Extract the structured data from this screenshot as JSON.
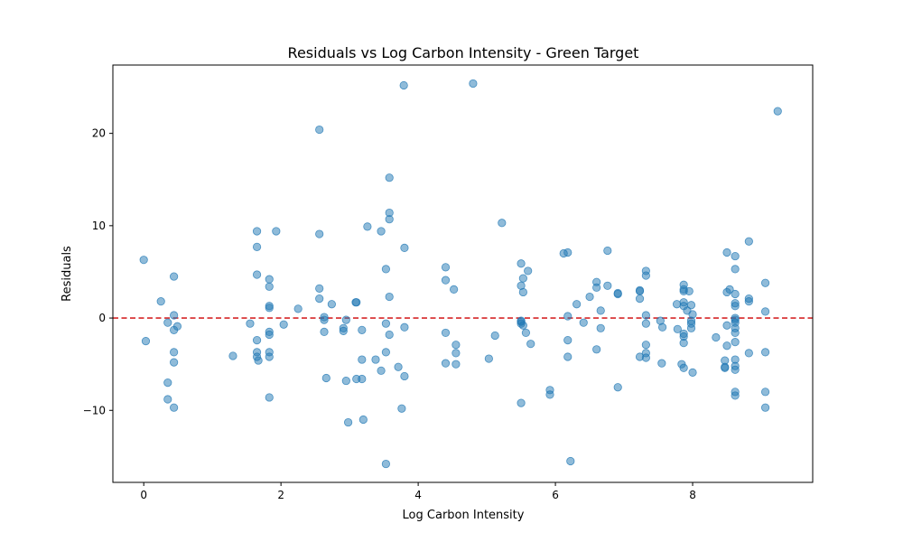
{
  "chart_data": {
    "type": "scatter",
    "title": "Residuals vs Log Carbon Intensity - Green Target",
    "xlabel": "Log Carbon Intensity",
    "ylabel": "Residuals",
    "xlim": [
      -0.45,
      9.75
    ],
    "ylim": [
      -17.8,
      27.4
    ],
    "xticks": [
      0,
      2,
      4,
      6,
      8
    ],
    "yticks": [
      -10,
      0,
      10,
      20
    ],
    "xtick_labels": [
      "0",
      "2",
      "4",
      "6",
      "8"
    ],
    "ytick_labels": [
      "−10",
      "0",
      "10",
      "20"
    ],
    "grid": false,
    "reference_line": {
      "y": 0,
      "style": "dashed",
      "color": "#d62728"
    },
    "point_color": "#1f77b4",
    "point_alpha": 0.5,
    "points": [
      [
        0.0,
        6.3
      ],
      [
        0.03,
        -2.5
      ],
      [
        0.25,
        1.8
      ],
      [
        0.35,
        -0.5
      ],
      [
        0.35,
        -7.0
      ],
      [
        0.35,
        -8.8
      ],
      [
        0.44,
        4.5
      ],
      [
        0.44,
        0.3
      ],
      [
        0.44,
        -1.3
      ],
      [
        0.44,
        -3.7
      ],
      [
        0.44,
        -4.8
      ],
      [
        0.44,
        -9.7
      ],
      [
        0.49,
        -0.9
      ],
      [
        1.3,
        -4.1
      ],
      [
        1.55,
        -0.6
      ],
      [
        1.65,
        9.4
      ],
      [
        1.65,
        7.7
      ],
      [
        1.65,
        4.7
      ],
      [
        1.65,
        -2.4
      ],
      [
        1.65,
        -3.7
      ],
      [
        1.65,
        -4.2
      ],
      [
        1.67,
        -4.6
      ],
      [
        1.83,
        4.2
      ],
      [
        1.83,
        3.4
      ],
      [
        1.83,
        1.3
      ],
      [
        1.83,
        1.1
      ],
      [
        1.83,
        -1.5
      ],
      [
        1.83,
        -1.8
      ],
      [
        1.83,
        -3.7
      ],
      [
        1.83,
        -4.2
      ],
      [
        1.83,
        -8.6
      ],
      [
        1.93,
        9.4
      ],
      [
        2.04,
        -0.7
      ],
      [
        2.25,
        1.0
      ],
      [
        2.56,
        20.4
      ],
      [
        2.56,
        9.1
      ],
      [
        2.56,
        3.2
      ],
      [
        2.56,
        2.1
      ],
      [
        2.63,
        0.1
      ],
      [
        2.63,
        -0.2
      ],
      [
        2.63,
        -1.5
      ],
      [
        2.66,
        -6.5
      ],
      [
        2.74,
        1.5
      ],
      [
        2.91,
        -1.1
      ],
      [
        2.91,
        -1.4
      ],
      [
        2.95,
        -0.2
      ],
      [
        2.95,
        -6.8
      ],
      [
        2.98,
        -11.3
      ],
      [
        3.09,
        1.7
      ],
      [
        3.1,
        1.7
      ],
      [
        3.1,
        -6.6
      ],
      [
        3.18,
        -1.3
      ],
      [
        3.18,
        -4.5
      ],
      [
        3.18,
        -6.6
      ],
      [
        3.2,
        -11.0
      ],
      [
        3.26,
        9.9
      ],
      [
        3.38,
        -4.5
      ],
      [
        3.46,
        9.4
      ],
      [
        3.46,
        -5.7
      ],
      [
        3.53,
        5.3
      ],
      [
        3.53,
        -0.6
      ],
      [
        3.53,
        -3.7
      ],
      [
        3.53,
        -15.8
      ],
      [
        3.58,
        15.2
      ],
      [
        3.58,
        11.4
      ],
      [
        3.58,
        10.7
      ],
      [
        3.58,
        2.3
      ],
      [
        3.58,
        -1.8
      ],
      [
        3.71,
        -5.3
      ],
      [
        3.76,
        -9.8
      ],
      [
        3.79,
        25.2
      ],
      [
        3.8,
        7.6
      ],
      [
        3.8,
        -1.0
      ],
      [
        3.8,
        -6.3
      ],
      [
        4.4,
        5.5
      ],
      [
        4.4,
        4.1
      ],
      [
        4.4,
        -1.6
      ],
      [
        4.4,
        -4.9
      ],
      [
        4.52,
        3.1
      ],
      [
        4.55,
        -2.9
      ],
      [
        4.55,
        -3.8
      ],
      [
        4.55,
        -5.0
      ],
      [
        4.8,
        25.4
      ],
      [
        5.03,
        -4.4
      ],
      [
        5.12,
        -1.9
      ],
      [
        5.22,
        10.3
      ],
      [
        5.5,
        5.9
      ],
      [
        5.5,
        3.5
      ],
      [
        5.5,
        -0.3
      ],
      [
        5.5,
        -0.4
      ],
      [
        5.5,
        -0.6
      ],
      [
        5.5,
        -9.2
      ],
      [
        5.53,
        4.3
      ],
      [
        5.53,
        2.8
      ],
      [
        5.53,
        -0.8
      ],
      [
        5.57,
        -1.6
      ],
      [
        5.6,
        5.1
      ],
      [
        5.64,
        -2.8
      ],
      [
        5.92,
        -7.8
      ],
      [
        5.92,
        -8.3
      ],
      [
        6.12,
        7.0
      ],
      [
        6.18,
        7.1
      ],
      [
        6.18,
        0.2
      ],
      [
        6.18,
        -2.4
      ],
      [
        6.18,
        -4.2
      ],
      [
        6.22,
        -15.5
      ],
      [
        6.31,
        1.5
      ],
      [
        6.41,
        -0.5
      ],
      [
        6.5,
        2.3
      ],
      [
        6.6,
        3.9
      ],
      [
        6.6,
        3.3
      ],
      [
        6.6,
        -3.4
      ],
      [
        6.66,
        0.8
      ],
      [
        6.66,
        -1.1
      ],
      [
        6.76,
        7.3
      ],
      [
        6.76,
        3.5
      ],
      [
        6.91,
        2.7
      ],
      [
        6.91,
        2.6
      ],
      [
        6.91,
        -7.5
      ],
      [
        7.23,
        3.0
      ],
      [
        7.23,
        2.9
      ],
      [
        7.23,
        2.1
      ],
      [
        7.23,
        -4.2
      ],
      [
        7.32,
        5.1
      ],
      [
        7.32,
        4.6
      ],
      [
        7.32,
        0.3
      ],
      [
        7.32,
        -0.6
      ],
      [
        7.32,
        -2.9
      ],
      [
        7.32,
        -3.8
      ],
      [
        7.32,
        -4.3
      ],
      [
        7.53,
        -0.3
      ],
      [
        7.56,
        -1.0
      ],
      [
        7.55,
        -4.9
      ],
      [
        7.77,
        1.5
      ],
      [
        7.78,
        -1.2
      ],
      [
        7.84,
        -5.0
      ],
      [
        7.87,
        3.6
      ],
      [
        7.87,
        3.1
      ],
      [
        7.87,
        2.9
      ],
      [
        7.87,
        1.7
      ],
      [
        7.87,
        1.3
      ],
      [
        7.87,
        -1.7
      ],
      [
        7.87,
        -2.0
      ],
      [
        7.87,
        -2.7
      ],
      [
        7.87,
        -5.4
      ],
      [
        7.92,
        0.8
      ],
      [
        7.95,
        2.9
      ],
      [
        7.98,
        1.4
      ],
      [
        7.98,
        -0.3
      ],
      [
        7.98,
        -0.6
      ],
      [
        7.98,
        -1.1
      ],
      [
        8.0,
        0.4
      ],
      [
        8.0,
        -5.9
      ],
      [
        8.34,
        -2.1
      ],
      [
        8.47,
        -4.6
      ],
      [
        8.47,
        -5.3
      ],
      [
        8.47,
        -5.4
      ],
      [
        8.5,
        7.1
      ],
      [
        8.5,
        2.8
      ],
      [
        8.5,
        -0.8
      ],
      [
        8.5,
        -3.0
      ],
      [
        8.54,
        3.1
      ],
      [
        8.62,
        6.7
      ],
      [
        8.62,
        5.3
      ],
      [
        8.62,
        2.6
      ],
      [
        8.62,
        1.6
      ],
      [
        8.62,
        1.3
      ],
      [
        8.62,
        0.0
      ],
      [
        8.62,
        -0.2
      ],
      [
        8.62,
        -0.5
      ],
      [
        8.62,
        -1.1
      ],
      [
        8.62,
        -1.6
      ],
      [
        8.62,
        -2.6
      ],
      [
        8.62,
        -4.5
      ],
      [
        8.62,
        -5.2
      ],
      [
        8.62,
        -5.6
      ],
      [
        8.62,
        -8.0
      ],
      [
        8.62,
        -8.4
      ],
      [
        8.82,
        8.3
      ],
      [
        8.82,
        2.1
      ],
      [
        8.82,
        1.8
      ],
      [
        8.82,
        -3.8
      ],
      [
        9.06,
        3.8
      ],
      [
        9.06,
        0.7
      ],
      [
        9.06,
        -3.7
      ],
      [
        9.06,
        -8.0
      ],
      [
        9.06,
        -9.7
      ],
      [
        9.24,
        22.4
      ]
    ]
  }
}
